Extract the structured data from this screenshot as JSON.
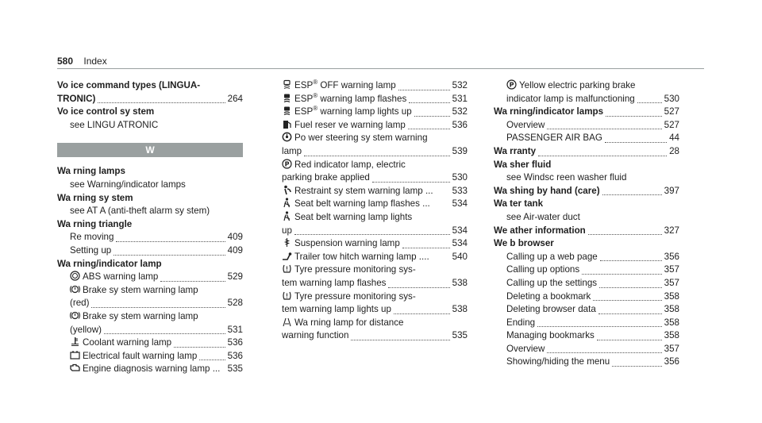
{
  "header": {
    "page_number": "580",
    "title": "Index"
  },
  "columns": [
    [
      {
        "kind": "main",
        "text": "Vo ice command types (LINGUA-"
      },
      {
        "kind": "main",
        "text": "TRONIC)",
        "page": "264"
      },
      {
        "kind": "main",
        "text": "Vo ice control sy stem"
      },
      {
        "kind": "sub",
        "text": "see LINGU ATRONIC"
      },
      {
        "kind": "section",
        "text": "W"
      },
      {
        "kind": "main",
        "text": "Wa rning lamps"
      },
      {
        "kind": "sub",
        "text": "see Warning/indicator lamps"
      },
      {
        "kind": "main",
        "text": "Wa rning sy stem"
      },
      {
        "kind": "sub",
        "text": "see AT A (anti-theft alarm sy stem)"
      },
      {
        "kind": "main",
        "text": "Wa rning triangle"
      },
      {
        "kind": "sub",
        "text": "Re moving",
        "page": "409"
      },
      {
        "kind": "sub",
        "text": "Setting up",
        "page": "409"
      },
      {
        "kind": "main",
        "text": "Wa rning/indicator lamp"
      },
      {
        "kind": "icon",
        "icon": "abs-icon",
        "text": "ABS warning lamp",
        "page": "529"
      },
      {
        "kind": "icon",
        "icon": "brake-icon",
        "text": "Brake sy stem warning lamp"
      },
      {
        "kind": "sub",
        "text": "(red)",
        "page": "528"
      },
      {
        "kind": "icon",
        "icon": "brake-icon",
        "text": "Brake sy stem warning lamp"
      },
      {
        "kind": "sub",
        "text": "(yellow)",
        "page": "531"
      },
      {
        "kind": "icon",
        "icon": "coolant-icon",
        "text": "Coolant warning lamp",
        "page": "536"
      },
      {
        "kind": "icon",
        "icon": "battery-icon",
        "text": "Electrical fault warning lamp",
        "page": "536"
      },
      {
        "kind": "icon",
        "icon": "engine-icon",
        "text": "Engine diagnosis warning lamp ...",
        "page": "535",
        "nodots": true
      }
    ],
    [
      {
        "kind": "icon0",
        "icon": "esp-off-icon",
        "text": "ESP",
        "sup": "®",
        "after": " OFF warning lamp",
        "page": "532"
      },
      {
        "kind": "icon0",
        "icon": "esp-icon",
        "text": "ESP",
        "sup": "®",
        "after": " warning lamp flashes",
        "page": "531"
      },
      {
        "kind": "icon0",
        "icon": "esp-icon",
        "text": "ESP",
        "sup": "®",
        "after": " warning lamp lights up",
        "page": "532"
      },
      {
        "kind": "icon0",
        "icon": "fuel-icon",
        "text": "Fuel reser ve warning lamp",
        "page": "536"
      },
      {
        "kind": "icon0",
        "icon": "steering-icon",
        "text": "Po wer steering sy stem warning"
      },
      {
        "kind": "plain",
        "text": "lamp",
        "page": "539"
      },
      {
        "kind": "icon0",
        "icon": "parking-brake-icon",
        "text": "Red indicator lamp, electric"
      },
      {
        "kind": "plain",
        "text": "parking brake applied",
        "page": "530"
      },
      {
        "kind": "icon0",
        "icon": "restraint-icon",
        "text": "Restraint sy stem warning lamp ...",
        "page": "533",
        "nodots": true
      },
      {
        "kind": "icon0",
        "icon": "seatbelt-icon",
        "text": "Seat belt warning lamp flashes ...",
        "page": "534",
        "nodots": true
      },
      {
        "kind": "icon0",
        "icon": "seatbelt-icon",
        "text": "Seat belt warning lamp lights"
      },
      {
        "kind": "plain",
        "text": "up",
        "page": "534"
      },
      {
        "kind": "icon0",
        "icon": "suspension-icon",
        "text": "Suspension warning lamp",
        "page": "534"
      },
      {
        "kind": "icon0",
        "icon": "trailer-icon",
        "text": "Trailer tow hitch warning lamp ....",
        "page": "540",
        "nodots": true
      },
      {
        "kind": "icon0",
        "icon": "tyre-icon",
        "text": "Tyre pressure monitoring sys-"
      },
      {
        "kind": "plain",
        "text": "tem warning lamp flashes",
        "page": "538"
      },
      {
        "kind": "icon0",
        "icon": "tyre-icon",
        "text": "Tyre pressure monitoring sys-"
      },
      {
        "kind": "plain",
        "text": "tem warning lamp lights up",
        "page": "538"
      },
      {
        "kind": "icon0",
        "icon": "distance-icon",
        "text": "Wa rning lamp for distance"
      },
      {
        "kind": "plain",
        "text": "warning function",
        "page": "535"
      }
    ],
    [
      {
        "kind": "icon",
        "icon": "parking-brake-icon",
        "text": "Yellow electric parking brake"
      },
      {
        "kind": "sub",
        "text": "indicator lamp is malfunctioning",
        "page": "530"
      },
      {
        "kind": "main",
        "text": "Wa rning/indicator lamps",
        "page": "527"
      },
      {
        "kind": "sub",
        "text": "Overview",
        "page": "527"
      },
      {
        "kind": "sub",
        "text": "PASSENGER AIR BAG",
        "page": "44"
      },
      {
        "kind": "main",
        "text": "Wa rranty",
        "page": "28"
      },
      {
        "kind": "main",
        "text": "Wa sher fluid"
      },
      {
        "kind": "sub",
        "text": "see Windsc reen washer fluid"
      },
      {
        "kind": "main",
        "text": "Wa shing by hand (care)",
        "page": "397"
      },
      {
        "kind": "main",
        "text": "Wa ter tank"
      },
      {
        "kind": "sub",
        "text": "see Air-water duct"
      },
      {
        "kind": "main",
        "text": "We ather information",
        "page": "327"
      },
      {
        "kind": "main",
        "text": "We b browser"
      },
      {
        "kind": "sub",
        "text": "Calling up a web page",
        "page": "356"
      },
      {
        "kind": "sub",
        "text": "Calling up options",
        "page": "357"
      },
      {
        "kind": "sub",
        "text": "Calling up the settings",
        "page": "357"
      },
      {
        "kind": "sub",
        "text": "Deleting a bookmark",
        "page": "358"
      },
      {
        "kind": "sub",
        "text": "Deleting browser data",
        "page": "358"
      },
      {
        "kind": "sub",
        "text": "Ending",
        "page": "358"
      },
      {
        "kind": "sub",
        "text": "Managing bookmarks",
        "page": "358"
      },
      {
        "kind": "sub",
        "text": "Overview",
        "page": "357"
      },
      {
        "kind": "sub",
        "text": "Showing/hiding the menu",
        "page": "356"
      }
    ]
  ]
}
